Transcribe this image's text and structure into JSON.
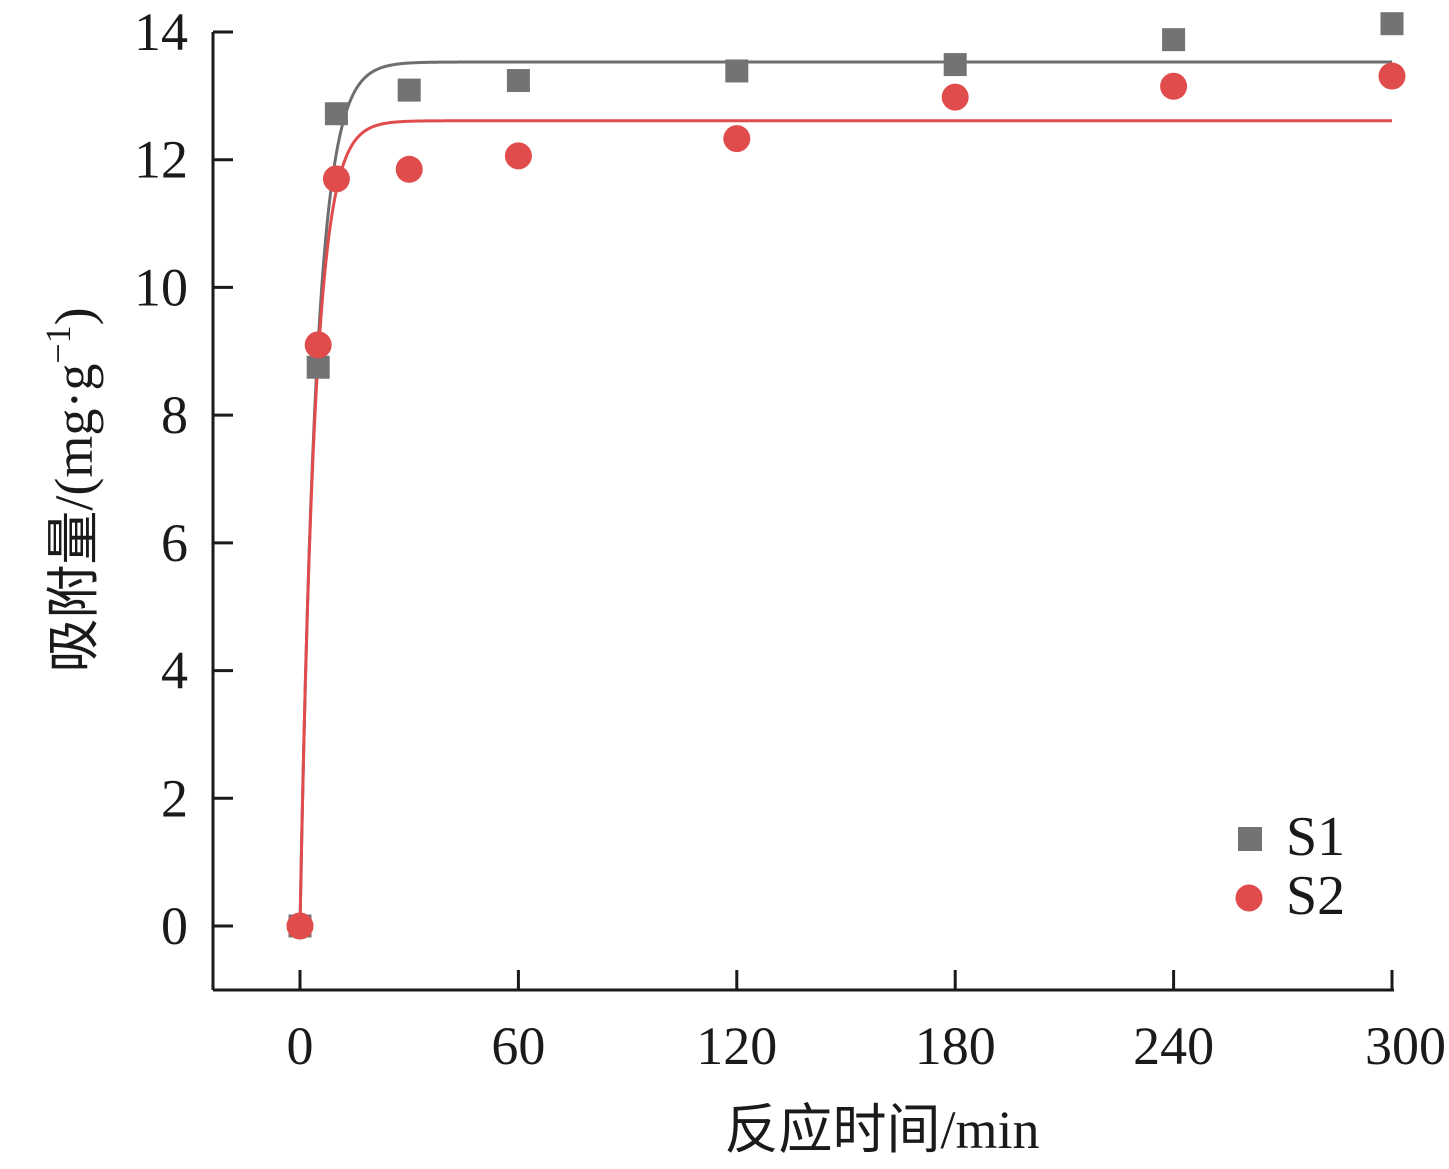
{
  "chart_data": {
    "type": "scatter",
    "title": "",
    "xlabel": "反应时间/min",
    "ylabel": "吸附量/(mg·g",
    "ylabel_sup": "−1",
    "ylabel_close": ")",
    "xlim": [
      -20,
      300
    ],
    "ylim": [
      -1,
      14
    ],
    "xticks": [
      0,
      60,
      120,
      180,
      240,
      300
    ],
    "yticks": [
      0,
      2,
      4,
      6,
      8,
      10,
      12,
      14
    ],
    "xtick_labels": [
      "0",
      "60",
      "120",
      "180",
      "240",
      "300"
    ],
    "ytick_labels": [
      "0",
      "2",
      "4",
      "6",
      "8",
      "10",
      "12",
      "14"
    ],
    "grid": false,
    "legend_position": "bottom-right",
    "series": [
      {
        "name": "S1",
        "marker": "square",
        "color": "#737373",
        "x": [
          0,
          5,
          10,
          30,
          60,
          120,
          180,
          240,
          300
        ],
        "y": [
          0.0,
          8.75,
          12.72,
          13.09,
          13.24,
          13.39,
          13.49,
          13.88,
          14.13
        ],
        "fit": {
          "model": "pseudo-first-order",
          "qe": 13.53,
          "k": 0.225
        }
      },
      {
        "name": "S2",
        "marker": "circle",
        "color": "#e04b4b",
        "x": [
          0,
          5,
          10,
          30,
          60,
          120,
          180,
          240,
          300
        ],
        "y": [
          0.0,
          9.1,
          11.7,
          11.85,
          12.06,
          12.33,
          12.98,
          13.15,
          13.31
        ],
        "fit": {
          "model": "pseudo-first-order",
          "qe": 12.61,
          "k": 0.245
        }
      }
    ],
    "fit_line_colors": [
      "#6e6e6e",
      "#e04b4b"
    ]
  }
}
